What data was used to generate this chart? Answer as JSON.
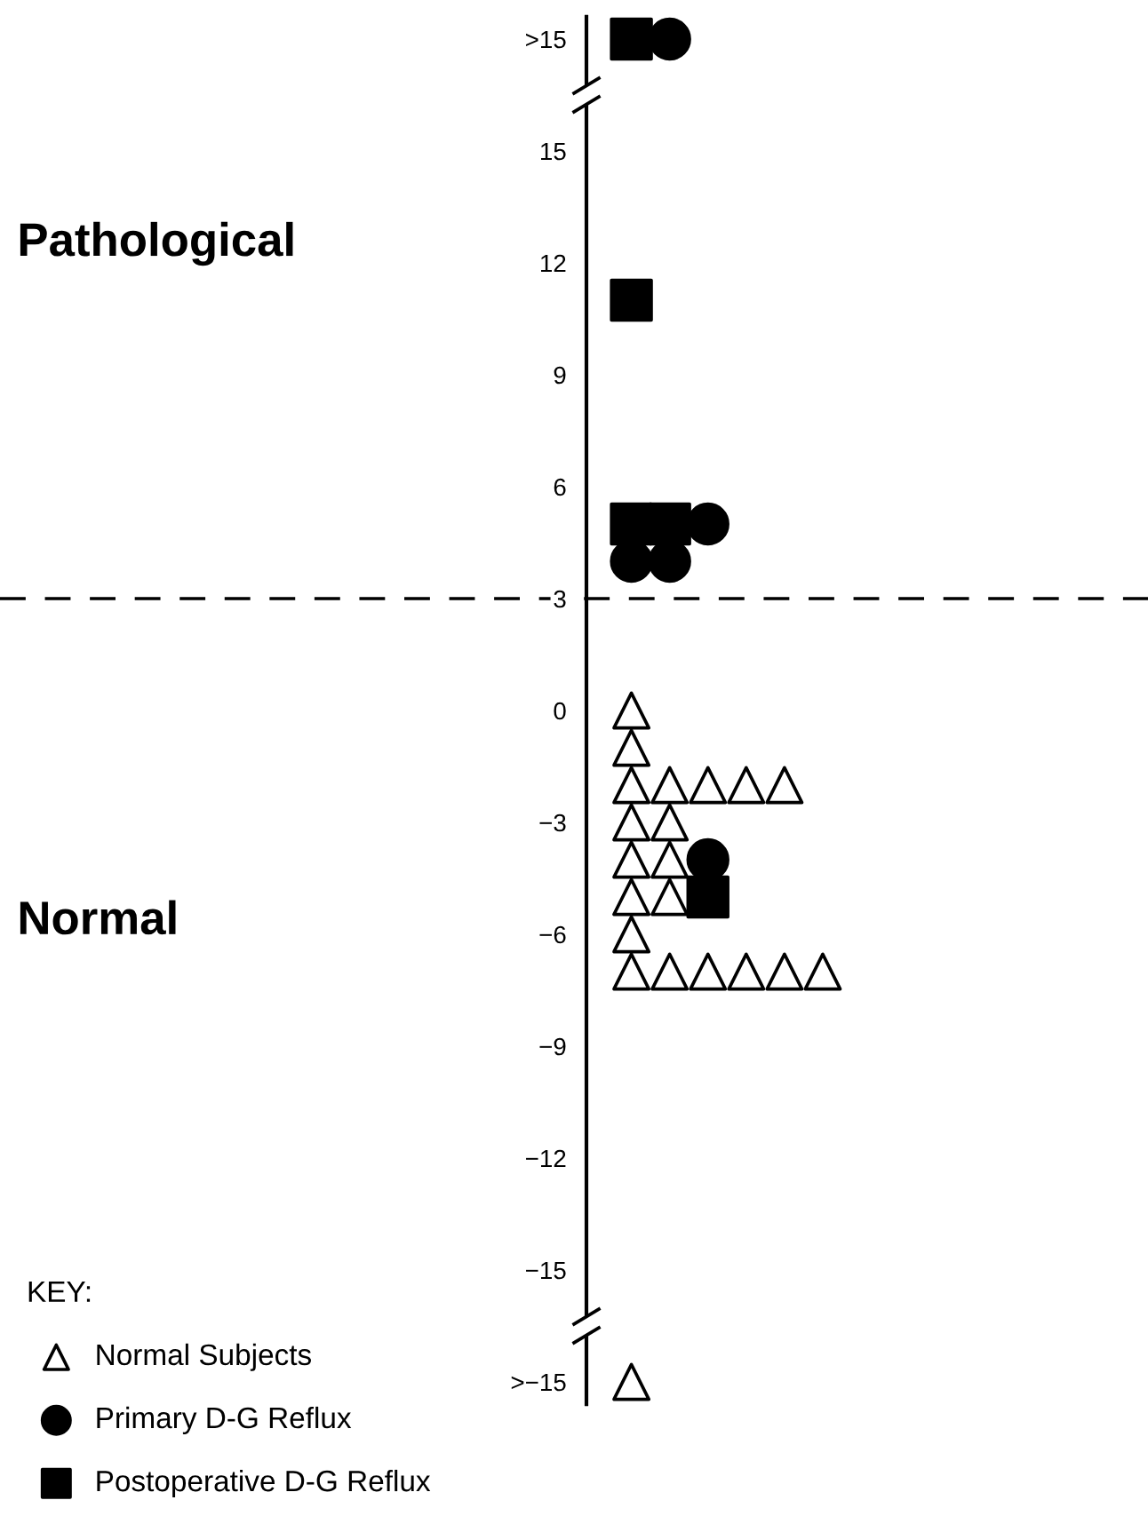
{
  "chart_data": {
    "type": "scatter",
    "legend_title": "KEY:",
    "legend": "bottom left",
    "tick_labels": "y",
    "grid": false,
    "categories": [
      null,
      null,
      null,
      null,
      null,
      null,
      null,
      null,
      null,
      null,
      null,
      null,
      null,
      null,
      null,
      null,
      null,
      null,
      null,
      null,
      null,
      null,
      null,
      null,
      null,
      null,
      null,
      null,
      null,
      null
    ],
    "ylim": [
      -18.6,
      18.6
    ],
    "yticks": [
      {
        "value": -18,
        "label": ">−15"
      },
      {
        "value": -15,
        "label": "−15"
      },
      {
        "value": -12,
        "label": "−12"
      },
      {
        "value": -9,
        "label": "−9"
      },
      {
        "value": -6,
        "label": "−6"
      },
      {
        "value": -3,
        "label": "−3"
      },
      {
        "value": 0,
        "label": "0"
      },
      {
        "value": 3,
        "label": "3"
      },
      {
        "value": 6,
        "label": "6"
      },
      {
        "value": 9,
        "label": "9"
      },
      {
        "value": 12,
        "label": "12"
      },
      {
        "value": 15,
        "label": "15"
      },
      {
        "value": 18,
        "label": ">15"
      }
    ],
    "ref_lines": [
      {
        "axis": "y",
        "value": 3,
        "line_style": "dashed",
        "color": "#000000"
      }
    ],
    "annotations": [
      "Pathological",
      "Normal"
    ],
    "series": [
      {
        "name": "Normal Subjects",
        "marker": "triangle",
        "color": "#000000",
        "values": [
          null,
          null,
          null,
          null,
          null,
          null,
          null,
          null,
          null,
          null,
          null,
          null,
          null,
          null,
          null,
          null,
          0,
          -2,
          -2,
          -2,
          -2,
          -7,
          null,
          null,
          null,
          null,
          null,
          null,
          null,
          null
        ]
      },
      {
        "marker": "triangle",
        "color": "#000000",
        "values": [
          null,
          null,
          null,
          null,
          null,
          null,
          null,
          null,
          null,
          null,
          null,
          null,
          null,
          null,
          null,
          null,
          -1,
          -3,
          -7,
          -7,
          -7,
          null,
          null,
          null,
          null,
          null,
          null,
          null,
          null,
          null
        ]
      },
      {
        "marker": "triangle",
        "color": "#000000",
        "values": [
          null,
          null,
          null,
          null,
          null,
          null,
          null,
          null,
          null,
          null,
          null,
          null,
          null,
          null,
          null,
          null,
          -2,
          -4,
          null,
          null,
          null,
          null,
          null,
          null,
          null,
          null,
          null,
          null,
          null,
          null
        ]
      },
      {
        "marker": "triangle",
        "color": "#000000",
        "values": [
          null,
          null,
          null,
          null,
          null,
          null,
          null,
          null,
          null,
          null,
          null,
          null,
          null,
          null,
          null,
          null,
          -3,
          -5,
          null,
          null,
          null,
          null,
          null,
          null,
          null,
          null,
          null,
          null,
          null,
          null
        ]
      },
      {
        "marker": "triangle",
        "color": "#000000",
        "values": [
          null,
          null,
          null,
          null,
          null,
          null,
          null,
          null,
          null,
          null,
          null,
          null,
          null,
          null,
          null,
          null,
          -4,
          -7,
          null,
          null,
          null,
          null,
          null,
          null,
          null,
          null,
          null,
          null,
          null,
          null
        ]
      },
      {
        "marker": "triangle",
        "color": "#000000",
        "values": [
          null,
          null,
          null,
          null,
          null,
          null,
          null,
          null,
          null,
          null,
          null,
          null,
          null,
          null,
          null,
          null,
          -5,
          null,
          null,
          null,
          null,
          null,
          null,
          null,
          null,
          null,
          null,
          null,
          null,
          null
        ]
      },
      {
        "marker": "triangle",
        "color": "#000000",
        "values": [
          null,
          null,
          null,
          null,
          null,
          null,
          null,
          null,
          null,
          null,
          null,
          null,
          null,
          null,
          null,
          null,
          -6,
          null,
          null,
          null,
          null,
          null,
          null,
          null,
          null,
          null,
          null,
          null,
          null,
          null
        ]
      },
      {
        "marker": "triangle",
        "color": "#000000",
        "values": [
          null,
          null,
          null,
          null,
          null,
          null,
          null,
          null,
          null,
          null,
          null,
          null,
          null,
          null,
          null,
          null,
          -7,
          null,
          null,
          null,
          null,
          null,
          null,
          null,
          null,
          null,
          null,
          null,
          null,
          null
        ]
      },
      {
        "marker": "triangle",
        "color": "#000000",
        "values": [
          null,
          null,
          null,
          null,
          null,
          null,
          null,
          null,
          null,
          null,
          null,
          null,
          null,
          null,
          null,
          null,
          -18,
          null,
          null,
          null,
          null,
          null,
          null,
          null,
          null,
          null,
          null,
          null,
          null,
          null
        ]
      },
      {
        "name": "Primary D-G Reflux",
        "marker": "circle",
        "color": "#000000",
        "values": [
          null,
          null,
          null,
          null,
          null,
          null,
          null,
          null,
          null,
          null,
          null,
          null,
          null,
          null,
          null,
          null,
          4,
          18,
          5,
          null,
          null,
          null,
          null,
          null,
          null,
          null,
          null,
          null,
          null,
          null
        ]
      },
      {
        "marker": "circle",
        "color": "#000000",
        "values": [
          null,
          null,
          null,
          null,
          null,
          null,
          null,
          null,
          null,
          null,
          null,
          null,
          null,
          null,
          null,
          null,
          null,
          4,
          -4,
          null,
          null,
          null,
          null,
          null,
          null,
          null,
          null,
          null,
          null,
          null
        ]
      },
      {
        "name": "Postoperative D-G Reflux",
        "marker": "square",
        "color": "#000000",
        "values": [
          null,
          null,
          null,
          null,
          null,
          null,
          null,
          null,
          null,
          null,
          null,
          null,
          null,
          null,
          null,
          null,
          18,
          5,
          -5,
          null,
          null,
          null,
          null,
          null,
          null,
          null,
          null,
          null,
          null,
          null
        ]
      },
      {
        "marker": "square",
        "color": "#000000",
        "values": [
          null,
          null,
          null,
          null,
          null,
          null,
          null,
          null,
          null,
          null,
          null,
          null,
          null,
          null,
          null,
          null,
          11,
          null,
          null,
          null,
          null,
          null,
          null,
          null,
          null,
          null,
          null,
          null,
          null,
          null
        ]
      },
      {
        "marker": "square",
        "color": "#000000",
        "values": [
          null,
          null,
          null,
          null,
          null,
          null,
          null,
          null,
          null,
          null,
          null,
          null,
          null,
          null,
          null,
          null,
          5,
          null,
          null,
          null,
          null,
          null,
          null,
          null,
          null,
          null,
          null,
          null,
          null,
          null
        ]
      }
    ]
  }
}
